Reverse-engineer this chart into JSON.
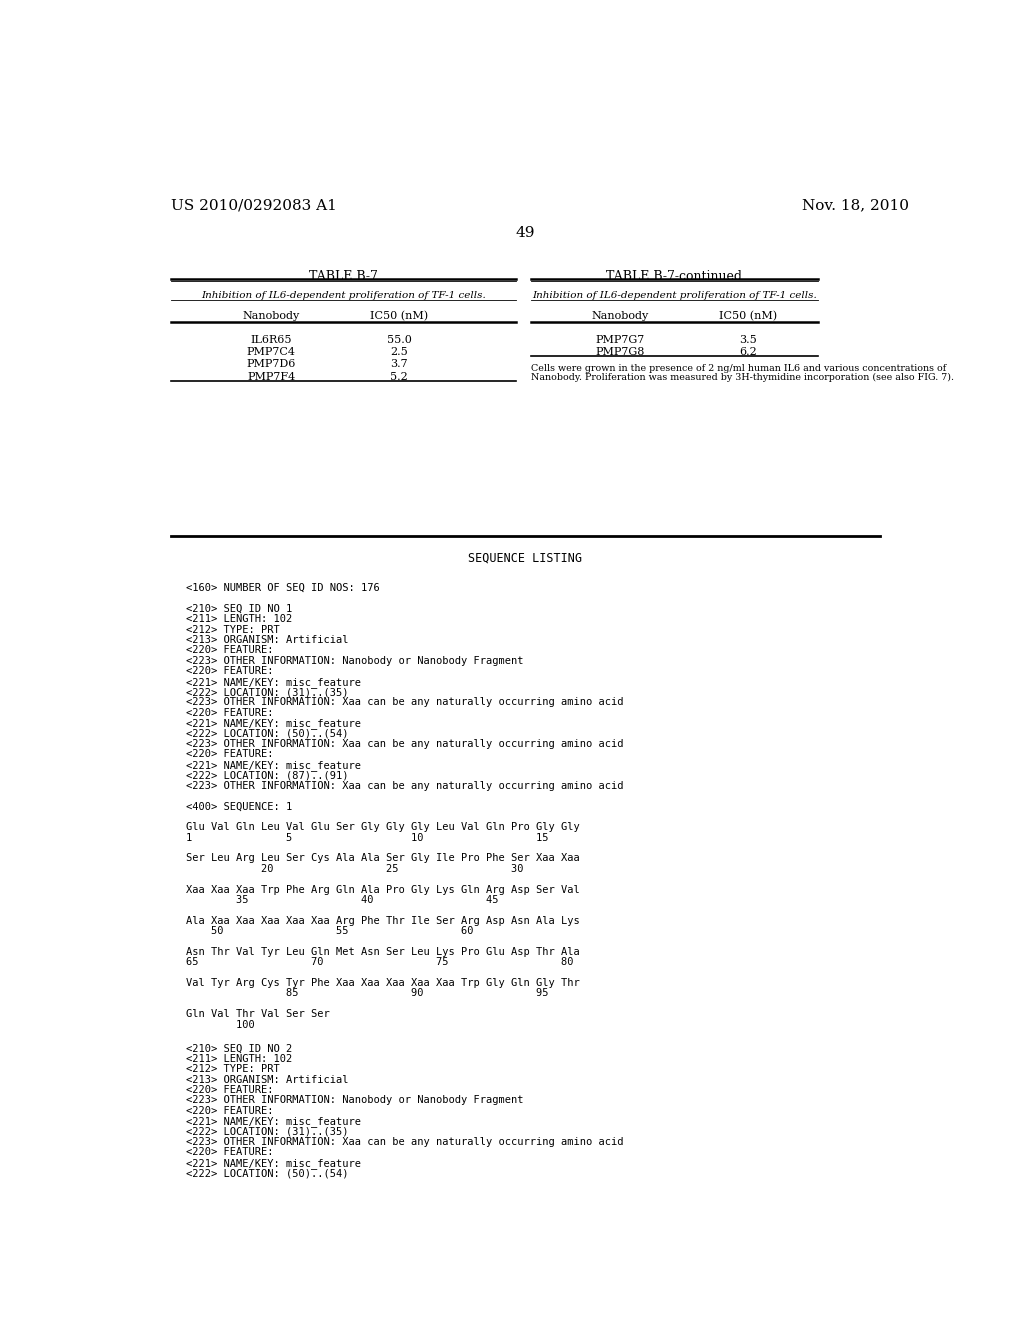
{
  "header_left": "US 2010/0292083 A1",
  "header_right": "Nov. 18, 2010",
  "page_number": "49",
  "table_title_left": "TABLE B-7",
  "table_title_right": "TABLE B-7-continued",
  "table_subtitle": "Inhibition of IL6-dependent proliferation of TF-1 cells.",
  "col_headers": [
    "Nanobody",
    "IC50 (nM)"
  ],
  "table_left_data": [
    [
      "IL6R65",
      "55.0"
    ],
    [
      "PMP7C4",
      "2.5"
    ],
    [
      "PMP7D6",
      "3.7"
    ],
    [
      "PMP7F4",
      "5.2"
    ]
  ],
  "table_right_data": [
    [
      "PMP7G7",
      "3.5"
    ],
    [
      "PMP7G8",
      "6.2"
    ]
  ],
  "footnote_line1": "Cells were grown in the presence of 2 ng/ml human IL6 and various concentrations of",
  "footnote_line2": "Nanobody. Proliferation was measured by 3H-thymidine incorporation (see also FIG. 7).",
  "seq_listing_title": "SEQUENCE LISTING",
  "seq_lines": [
    "",
    "<160> NUMBER OF SEQ ID NOS: 176",
    "",
    "<210> SEQ ID NO 1",
    "<211> LENGTH: 102",
    "<212> TYPE: PRT",
    "<213> ORGANISM: Artificial",
    "<220> FEATURE:",
    "<223> OTHER INFORMATION: Nanobody or Nanobody Fragment",
    "<220> FEATURE:",
    "<221> NAME/KEY: misc_feature",
    "<222> LOCATION: (31)..(35)",
    "<223> OTHER INFORMATION: Xaa can be any naturally occurring amino acid",
    "<220> FEATURE:",
    "<221> NAME/KEY: misc_feature",
    "<222> LOCATION: (50)..(54)",
    "<223> OTHER INFORMATION: Xaa can be any naturally occurring amino acid",
    "<220> FEATURE:",
    "<221> NAME/KEY: misc_feature",
    "<222> LOCATION: (87)..(91)",
    "<223> OTHER INFORMATION: Xaa can be any naturally occurring amino acid",
    "",
    "<400> SEQUENCE: 1",
    "",
    "Glu Val Gln Leu Val Glu Ser Gly Gly Gly Leu Val Gln Pro Gly Gly",
    "1               5                   10                  15",
    "",
    "Ser Leu Arg Leu Ser Cys Ala Ala Ser Gly Ile Pro Phe Ser Xaa Xaa",
    "            20                  25                  30",
    "",
    "Xaa Xaa Xaa Trp Phe Arg Gln Ala Pro Gly Lys Gln Arg Asp Ser Val",
    "        35                  40                  45",
    "",
    "Ala Xaa Xaa Xaa Xaa Xaa Arg Phe Thr Ile Ser Arg Asp Asn Ala Lys",
    "    50                  55                  60",
    "",
    "Asn Thr Val Tyr Leu Gln Met Asn Ser Leu Lys Pro Glu Asp Thr Ala",
    "65                  70                  75                  80",
    "",
    "Val Tyr Arg Cys Tyr Phe Xaa Xaa Xaa Xaa Xaa Trp Gly Gln Gly Thr",
    "                85                  90                  95",
    "",
    "Gln Val Thr Val Ser Ser",
    "        100"
  ],
  "seq2_lines": [
    "",
    "<210> SEQ ID NO 2",
    "<211> LENGTH: 102",
    "<212> TYPE: PRT",
    "<213> ORGANISM: Artificial",
    "<220> FEATURE:",
    "<223> OTHER INFORMATION: Nanobody or Nanobody Fragment",
    "<220> FEATURE:",
    "<221> NAME/KEY: misc_feature",
    "<222> LOCATION: (31)..(35)",
    "<223> OTHER INFORMATION: Xaa can be any naturally occurring amino acid",
    "<220> FEATURE:",
    "<221> NAME/KEY: misc_feature",
    "<222> LOCATION: (50)..(54)"
  ]
}
